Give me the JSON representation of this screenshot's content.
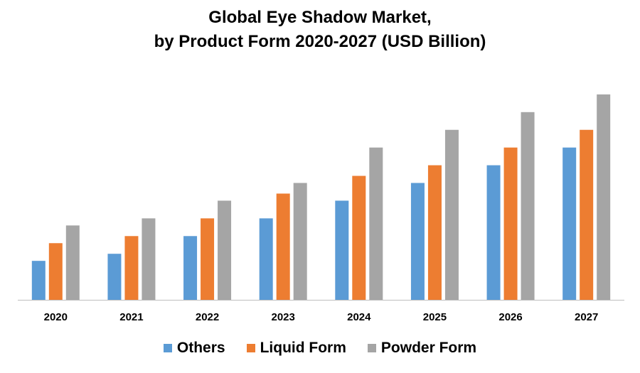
{
  "chart_data": {
    "type": "bar",
    "title_lines": [
      "Global Eye Shadow Market,",
      "by Product Form 2020-2027 (USD Billion)"
    ],
    "categories": [
      "2020",
      "2021",
      "2022",
      "2023",
      "2024",
      "2025",
      "2026",
      "2027"
    ],
    "series": [
      {
        "name": "Others",
        "color": "#5b9bd5",
        "values": [
          2.2,
          2.6,
          3.6,
          4.6,
          5.6,
          6.6,
          7.6,
          8.6
        ]
      },
      {
        "name": "Liquid Form",
        "color": "#ed7d31",
        "values": [
          3.2,
          3.6,
          4.6,
          6.0,
          7.0,
          7.6,
          8.6,
          9.6
        ]
      },
      {
        "name": "Powder Form",
        "color": "#a5a5a5",
        "values": [
          4.2,
          4.6,
          5.6,
          6.6,
          8.6,
          9.6,
          10.6,
          11.6
        ]
      }
    ],
    "xlabel": "",
    "ylabel": "",
    "ylim": [
      0,
      13
    ],
    "y_axis_visible": false,
    "grid": false,
    "legend": "bottom"
  }
}
